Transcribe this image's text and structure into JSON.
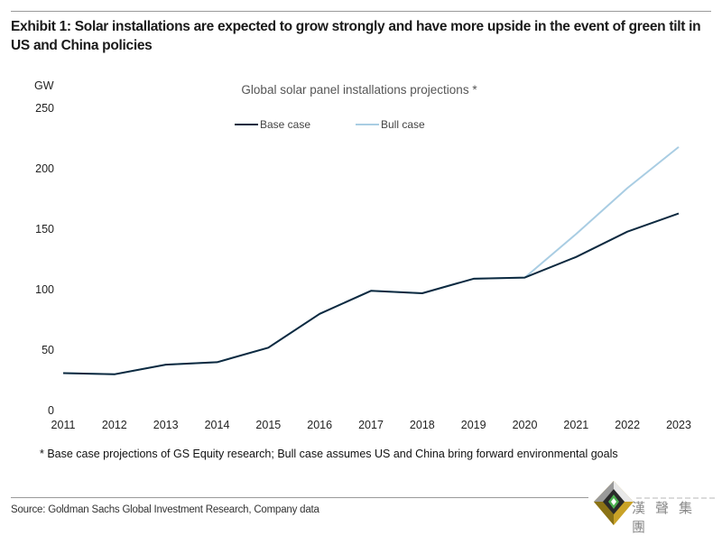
{
  "exhibit": {
    "title": "Exhibit 1: Solar installations are expected to grow strongly and have more upside in the event of green tilt in US and China policies"
  },
  "chart_data": {
    "type": "line",
    "title": "Global solar panel installations projections *",
    "xlabel": "",
    "ylabel": "GW",
    "x": [
      "2011",
      "2012",
      "2013",
      "2014",
      "2015",
      "2016",
      "2017",
      "2018",
      "2019",
      "2020",
      "2021",
      "2022",
      "2023"
    ],
    "ylim": [
      0,
      250
    ],
    "yticks": [
      0,
      50,
      100,
      150,
      200,
      250
    ],
    "grid": false,
    "legend_position": "top-center",
    "series": [
      {
        "name": "Base case",
        "color": "#0d2a40",
        "values": [
          31,
          30,
          38,
          40,
          52,
          80,
          99,
          97,
          109,
          110,
          127,
          148,
          163
        ]
      },
      {
        "name": "Bull case",
        "color": "#a9cde3",
        "values": [
          31,
          30,
          38,
          40,
          52,
          80,
          99,
          97,
          109,
          110,
          146,
          184,
          218
        ]
      }
    ]
  },
  "footnote": "* Base  case projections of  GS Equity research; Bull case assumes US and China bring forward environmental goals",
  "source": "Source: Goldman Sachs Global Investment Research, Company data",
  "logo": {
    "text": "漢聲集團"
  }
}
